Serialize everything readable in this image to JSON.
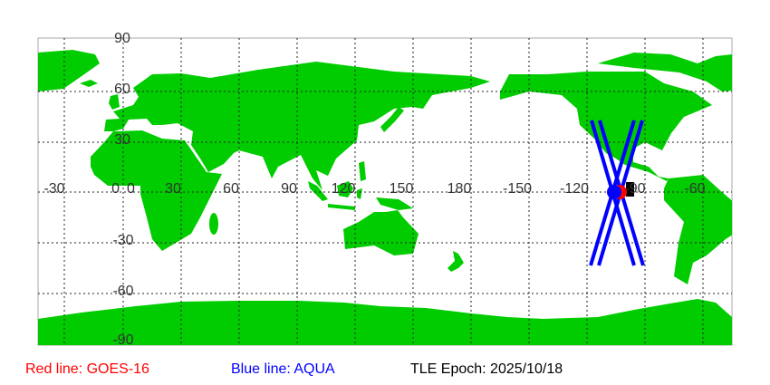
{
  "map": {
    "projection": "equirectangular",
    "land_color": "#00cc00",
    "grid": true,
    "lon_labels": [
      "-30",
      "0",
      "30",
      "60",
      "90",
      "120",
      "150",
      "180",
      "-150",
      "-120",
      "-90",
      "-60"
    ],
    "lat_labels": [
      "90",
      "60",
      "30",
      "0",
      "-30",
      "-60",
      "-90"
    ],
    "ground_tracks": [
      {
        "satellite": "AQUA",
        "color": "#0000ff"
      },
      {
        "satellite": "GOES-16",
        "color": "#ff0000"
      }
    ]
  },
  "legend": {
    "red": {
      "text": "Red line: GOES-16",
      "color": "#ff0000"
    },
    "blue": {
      "text": "Blue line: AQUA",
      "color": "#0000ff"
    },
    "epoch": {
      "text": "TLE Epoch: 2025/10/18",
      "color": "#000000"
    }
  }
}
